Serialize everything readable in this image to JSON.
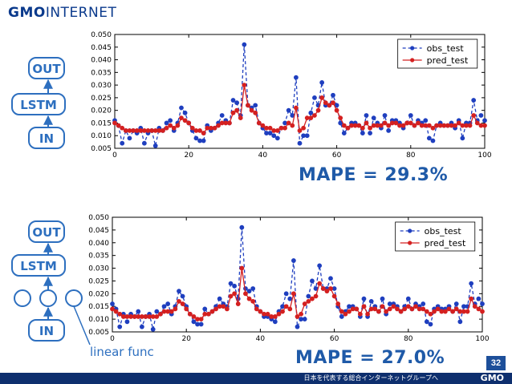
{
  "header": {
    "logo_brand": "GMO",
    "logo_rest": "INTERNET"
  },
  "diagrams": {
    "top": {
      "out": "OUT",
      "lstm": "LSTM",
      "in": "IN"
    },
    "bottom": {
      "out": "OUT",
      "lstm": "LSTM",
      "in": "IN",
      "linear_label": "linear func"
    }
  },
  "colors": {
    "obs": "#1f3fbf",
    "pred": "#d42020",
    "diagram": "#2d6fbf",
    "mape": "#1f5aa8"
  },
  "chart_data": [
    {
      "type": "line",
      "xlim": [
        0,
        100
      ],
      "ylim": [
        0.005,
        0.05
      ],
      "xticks": [
        0,
        20,
        40,
        60,
        80,
        100
      ],
      "yticks": [
        0.005,
        0.01,
        0.015,
        0.02,
        0.025,
        0.03,
        0.035,
        0.04,
        0.045,
        0.05
      ],
      "ytick_labels": [
        "0.005",
        "0.010",
        "0.015",
        "0.020",
        "0.025",
        "0.030",
        "0.035",
        "0.040",
        "0.045",
        "0.050"
      ],
      "legend": "top-right",
      "series": [
        {
          "name": "obs_test",
          "style": "dashed",
          "values": [
            0.016,
            0.014,
            0.007,
            0.012,
            0.009,
            0.012,
            0.011,
            0.013,
            0.007,
            0.011,
            0.012,
            0.006,
            0.013,
            0.012,
            0.015,
            0.016,
            0.012,
            0.015,
            0.021,
            0.019,
            0.015,
            0.012,
            0.009,
            0.008,
            0.008,
            0.014,
            0.012,
            0.013,
            0.015,
            0.018,
            0.016,
            0.015,
            0.024,
            0.023,
            0.018,
            0.046,
            0.022,
            0.021,
            0.022,
            0.015,
            0.013,
            0.011,
            0.011,
            0.01,
            0.009,
            0.013,
            0.015,
            0.02,
            0.018,
            0.033,
            0.007,
            0.01,
            0.01,
            0.019,
            0.025,
            0.022,
            0.031,
            0.022,
            0.022,
            0.026,
            0.022,
            0.015,
            0.011,
            0.013,
            0.015,
            0.015,
            0.014,
            0.011,
            0.018,
            0.011,
            0.017,
            0.015,
            0.013,
            0.018,
            0.012,
            0.016,
            0.016,
            0.015,
            0.013,
            0.015,
            0.018,
            0.014,
            0.016,
            0.015,
            0.016,
            0.009,
            0.008,
            0.014,
            0.015,
            0.014,
            0.014,
            0.015,
            0.013,
            0.016,
            0.009,
            0.015,
            0.015,
            0.024,
            0.016,
            0.018,
            0.016
          ]
        },
        {
          "name": "pred_test",
          "style": "solid",
          "values": [
            0.015,
            0.014,
            0.013,
            0.012,
            0.012,
            0.012,
            0.012,
            0.012,
            0.012,
            0.012,
            0.012,
            0.012,
            0.012,
            0.012,
            0.013,
            0.014,
            0.013,
            0.014,
            0.017,
            0.016,
            0.015,
            0.013,
            0.012,
            0.012,
            0.011,
            0.013,
            0.013,
            0.013,
            0.014,
            0.015,
            0.015,
            0.015,
            0.019,
            0.02,
            0.017,
            0.03,
            0.022,
            0.02,
            0.019,
            0.015,
            0.014,
            0.013,
            0.013,
            0.012,
            0.012,
            0.013,
            0.013,
            0.015,
            0.014,
            0.021,
            0.012,
            0.013,
            0.017,
            0.017,
            0.018,
            0.02,
            0.025,
            0.023,
            0.022,
            0.023,
            0.02,
            0.017,
            0.014,
            0.013,
            0.014,
            0.014,
            0.014,
            0.013,
            0.015,
            0.013,
            0.014,
            0.014,
            0.014,
            0.015,
            0.014,
            0.015,
            0.015,
            0.014,
            0.014,
            0.015,
            0.015,
            0.014,
            0.015,
            0.014,
            0.014,
            0.014,
            0.013,
            0.014,
            0.014,
            0.014,
            0.014,
            0.014,
            0.014,
            0.015,
            0.014,
            0.014,
            0.014,
            0.018,
            0.015,
            0.014,
            0.014
          ]
        }
      ],
      "annotation": "MAPE = 29.3%"
    },
    {
      "type": "line",
      "xlim": [
        0,
        100
      ],
      "ylim": [
        0.005,
        0.05
      ],
      "xticks": [
        0,
        20,
        40,
        60,
        80,
        100
      ],
      "yticks": [
        0.005,
        0.01,
        0.015,
        0.02,
        0.025,
        0.03,
        0.035,
        0.04,
        0.045,
        0.05
      ],
      "ytick_labels": [
        "0.005",
        "0.010",
        "0.015",
        "0.020",
        "0.025",
        "0.030",
        "0.035",
        "0.040",
        "0.045",
        "0.050"
      ],
      "legend": "top-right",
      "series": [
        {
          "name": "obs_test",
          "style": "dashed",
          "values": [
            0.016,
            0.014,
            0.007,
            0.012,
            0.009,
            0.012,
            0.011,
            0.013,
            0.007,
            0.011,
            0.012,
            0.006,
            0.013,
            0.012,
            0.015,
            0.016,
            0.012,
            0.015,
            0.021,
            0.019,
            0.015,
            0.012,
            0.009,
            0.008,
            0.008,
            0.014,
            0.012,
            0.013,
            0.015,
            0.018,
            0.016,
            0.015,
            0.024,
            0.023,
            0.018,
            0.046,
            0.022,
            0.021,
            0.022,
            0.015,
            0.013,
            0.011,
            0.011,
            0.01,
            0.009,
            0.013,
            0.015,
            0.02,
            0.018,
            0.033,
            0.007,
            0.01,
            0.01,
            0.019,
            0.025,
            0.022,
            0.031,
            0.022,
            0.022,
            0.026,
            0.022,
            0.015,
            0.011,
            0.013,
            0.015,
            0.015,
            0.014,
            0.011,
            0.018,
            0.011,
            0.017,
            0.015,
            0.013,
            0.018,
            0.012,
            0.016,
            0.016,
            0.015,
            0.013,
            0.015,
            0.018,
            0.014,
            0.016,
            0.015,
            0.016,
            0.009,
            0.008,
            0.014,
            0.015,
            0.014,
            0.014,
            0.015,
            0.013,
            0.016,
            0.009,
            0.015,
            0.015,
            0.024,
            0.016,
            0.018,
            0.016
          ]
        },
        {
          "name": "pred_test",
          "style": "solid",
          "values": [
            0.014,
            0.013,
            0.012,
            0.011,
            0.011,
            0.011,
            0.011,
            0.011,
            0.011,
            0.011,
            0.011,
            0.011,
            0.011,
            0.012,
            0.013,
            0.013,
            0.013,
            0.014,
            0.017,
            0.016,
            0.014,
            0.012,
            0.011,
            0.01,
            0.01,
            0.012,
            0.012,
            0.013,
            0.014,
            0.015,
            0.015,
            0.014,
            0.019,
            0.02,
            0.016,
            0.03,
            0.02,
            0.018,
            0.017,
            0.014,
            0.013,
            0.012,
            0.012,
            0.011,
            0.011,
            0.012,
            0.013,
            0.015,
            0.014,
            0.02,
            0.011,
            0.012,
            0.016,
            0.017,
            0.018,
            0.019,
            0.024,
            0.022,
            0.021,
            0.022,
            0.019,
            0.016,
            0.013,
            0.012,
            0.013,
            0.014,
            0.014,
            0.012,
            0.015,
            0.012,
            0.014,
            0.014,
            0.013,
            0.015,
            0.013,
            0.014,
            0.015,
            0.014,
            0.013,
            0.014,
            0.015,
            0.014,
            0.015,
            0.014,
            0.014,
            0.013,
            0.012,
            0.013,
            0.014,
            0.013,
            0.013,
            0.014,
            0.013,
            0.014,
            0.013,
            0.013,
            0.013,
            0.018,
            0.015,
            0.014,
            0.013
          ]
        }
      ],
      "annotation": "MAPE = 27.0%"
    }
  ],
  "page_number": "32",
  "footer": {
    "tagline": "日本を代表する総合インターネットグループへ",
    "brand": "GMO"
  }
}
